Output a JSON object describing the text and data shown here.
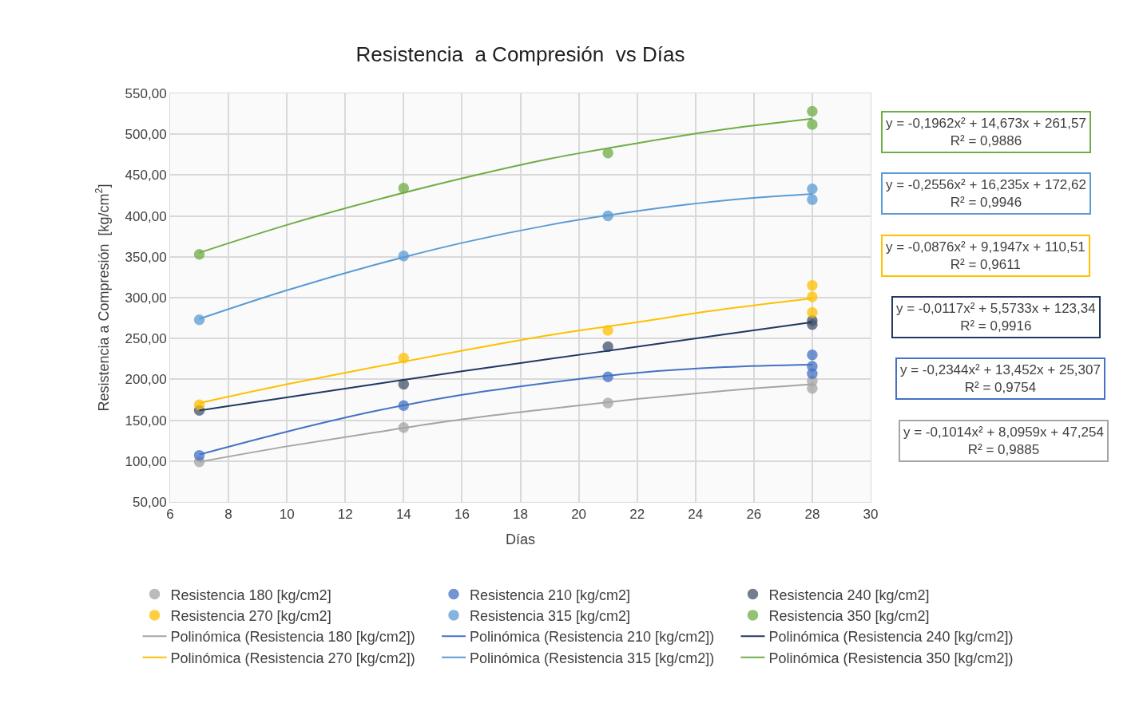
{
  "chart_data": {
    "type": "scatter",
    "title": "Resistencia  a Compresión  vs Días",
    "xlabel": "Días",
    "ylabel": "Resistencia a Compresión  [kg/cm$^{2}$]",
    "xlim": [
      6,
      30
    ],
    "xticks": [
      6,
      8,
      10,
      12,
      14,
      16,
      18,
      20,
      22,
      24,
      26,
      28,
      30
    ],
    "ylim": [
      50,
      550
    ],
    "yticks": [
      {
        "value": 50,
        "label": "50,00"
      },
      {
        "value": 100,
        "label": "100,00"
      },
      {
        "value": 150,
        "label": "150,00"
      },
      {
        "value": 200,
        "label": "200,00"
      },
      {
        "value": 250,
        "label": "250,00"
      },
      {
        "value": 300,
        "label": "300,00"
      },
      {
        "value": 350,
        "label": "350,00"
      },
      {
        "value": 400,
        "label": "400,00"
      },
      {
        "value": 450,
        "label": "450,00"
      },
      {
        "value": 500,
        "label": "500,00"
      },
      {
        "value": 550,
        "label": "550,00"
      }
    ],
    "grid": true,
    "legend": "bottom",
    "marker": "circle",
    "series": [
      {
        "name": "Resistencia 180 [kg/cm2]",
        "color": "#a5a5a5",
        "x": [
          7,
          14,
          21,
          28,
          28
        ],
        "values": [
          99,
          141,
          171,
          198,
          189
        ]
      },
      {
        "name": "Resistencia 210 [kg/cm2]",
        "color": "#4472c4",
        "x": [
          7,
          14,
          21,
          28,
          28,
          28
        ],
        "values": [
          107,
          168,
          203,
          230,
          216,
          207
        ]
      },
      {
        "name": "Resistencia 240 [kg/cm2]",
        "color": "#44546a",
        "x": [
          7,
          14,
          21,
          28,
          28
        ],
        "values": [
          162,
          194,
          240,
          272,
          267
        ]
      },
      {
        "name": "Resistencia 270 [kg/cm2]",
        "color": "#ffc000",
        "x": [
          7,
          14,
          21,
          28,
          28,
          28
        ],
        "values": [
          169,
          226,
          260,
          315,
          301,
          282
        ]
      },
      {
        "name": "Resistencia 315 [kg/cm2]",
        "color": "#5b9bd5",
        "x": [
          7,
          14,
          21,
          28,
          28
        ],
        "values": [
          273,
          351,
          400,
          433,
          420
        ]
      },
      {
        "name": "Resistencia 350 [kg/cm2]",
        "color": "#70ad47",
        "x": [
          7,
          14,
          21,
          28,
          28
        ],
        "values": [
          353,
          434,
          477,
          528,
          512
        ]
      },
      {
        "name": "Polinómica (Resistencia 180 [kg/cm2])",
        "type": "line",
        "marker": "none",
        "color": "#a5a5a5",
        "x": [
          7,
          10,
          13,
          16,
          19,
          22,
          25,
          28
        ],
        "values": [
          99,
          118,
          135,
          151,
          164,
          176,
          186,
          194
        ]
      },
      {
        "name": "Polinómica (Resistencia 210 [kg/cm2])",
        "type": "line",
        "marker": "none",
        "color": "#4472c4",
        "x": [
          7,
          10,
          13,
          16,
          19,
          22,
          25,
          28
        ],
        "values": [
          108,
          136,
          161,
          181,
          196,
          208,
          215,
          218
        ]
      },
      {
        "name": "Polinómica (Resistencia 240 [kg/cm2])",
        "type": "line",
        "marker": "none",
        "color": "#203864",
        "x": [
          7,
          10,
          13,
          16,
          19,
          22,
          25,
          28
        ],
        "values": [
          162,
          178,
          194,
          210,
          225,
          240,
          255,
          270
        ]
      },
      {
        "name": "Polinómica (Resistencia 270 [kg/cm2])",
        "type": "line",
        "marker": "none",
        "color": "#ffc000",
        "x": [
          7,
          10,
          13,
          16,
          19,
          22,
          25,
          28
        ],
        "values": [
          171,
          194,
          215,
          235,
          254,
          270,
          286,
          299
        ]
      },
      {
        "name": "Polinómica (Resistencia 315 [kg/cm2])",
        "type": "line",
        "marker": "none",
        "color": "#5b9bd5",
        "x": [
          7,
          10,
          13,
          16,
          19,
          22,
          25,
          28
        ],
        "values": [
          274,
          309,
          340,
          367,
          389,
          406,
          419,
          427
        ]
      },
      {
        "name": "Polinómica (Resistencia 350 [kg/cm2])",
        "type": "line",
        "marker": "none",
        "color": "#70ad47",
        "x": [
          7,
          10,
          13,
          16,
          19,
          22,
          25,
          28
        ],
        "values": [
          355,
          389,
          419,
          446,
          470,
          489,
          506,
          519
        ]
      }
    ],
    "annotations": [
      "y = -0,1962x² + 14,673x + 261,57\nR² = 0,9886",
      "y = -0,2556x² + 16,235x + 172,62\nR² = 0,9946",
      "y = -0,0876x² + 9,1947x + 110,51\nR² = 0,9611",
      "y = -0,0117x² + 5,5733x + 123,34\nR² = 0,9916",
      "y = -0,2344x² + 13,452x + 25,307\nR² = 0,9754",
      "y = -0,1014x² + 8,0959x + 47,254\nR² = 0,9885"
    ]
  }
}
